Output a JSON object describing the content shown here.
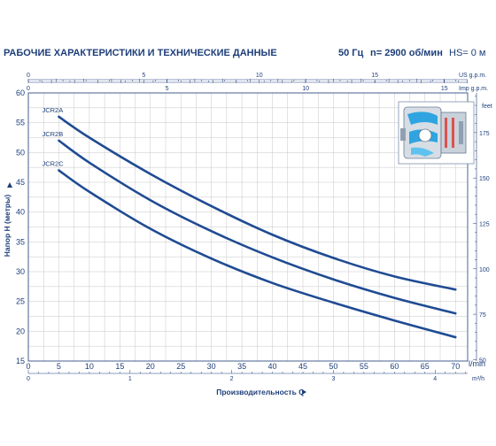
{
  "header": {
    "title": "РАБОЧИЕ ХАРАКТЕРИСТИКИ И ТЕХНИЧЕСКИЕ ДАННЫЕ",
    "frequency": "50 Гц",
    "speed": "n= 2900 об/мин",
    "hs": "HS= 0 м"
  },
  "colors": {
    "curve": "#1f4b93",
    "grid": "#c7c7c7",
    "axis": "#1d3e7a"
  },
  "chart_data": {
    "type": "line",
    "xlabel": "Производительность Q",
    "ylabel": "Напор H (метры)",
    "x_unit": "l/min",
    "xlim": [
      0,
      72
    ],
    "ylim": [
      15,
      60
    ],
    "x_ticks": [
      0,
      5,
      10,
      15,
      20,
      25,
      30,
      35,
      40,
      45,
      50,
      55,
      60,
      65,
      70
    ],
    "y_ticks": [
      15,
      20,
      25,
      30,
      35,
      40,
      45,
      50,
      55,
      60
    ],
    "grid": true,
    "secondary_axes": {
      "us_gpm": {
        "unit": "US g.p.m.",
        "ticks": [
          0,
          5,
          10,
          15
        ]
      },
      "imp_gpm": {
        "unit": "Imp g.p.m.",
        "ticks": [
          0,
          5,
          10,
          15
        ]
      },
      "m3h": {
        "unit": "m³/h",
        "ticks": [
          0,
          1,
          2,
          3,
          4
        ]
      },
      "feet": {
        "unit": "feet",
        "ticks": [
          50,
          75,
          100,
          125,
          150,
          175
        ]
      }
    },
    "series": [
      {
        "name": "JCR2A",
        "x": [
          5,
          10,
          20,
          30,
          40,
          50,
          60,
          70
        ],
        "y": [
          56,
          52.5,
          46.4,
          41,
          36.2,
          32.3,
          29.2,
          27
        ]
      },
      {
        "name": "JCR2B",
        "x": [
          5,
          10,
          20,
          30,
          40,
          50,
          60,
          70
        ],
        "y": [
          52,
          48.3,
          42,
          36.8,
          32.4,
          28.7,
          25.6,
          23
        ]
      },
      {
        "name": "JCR2C",
        "x": [
          5,
          10,
          20,
          30,
          40,
          50,
          60,
          70
        ],
        "y": [
          47,
          43.4,
          37.2,
          32.2,
          28.1,
          24.8,
          21.8,
          19
        ]
      }
    ]
  }
}
